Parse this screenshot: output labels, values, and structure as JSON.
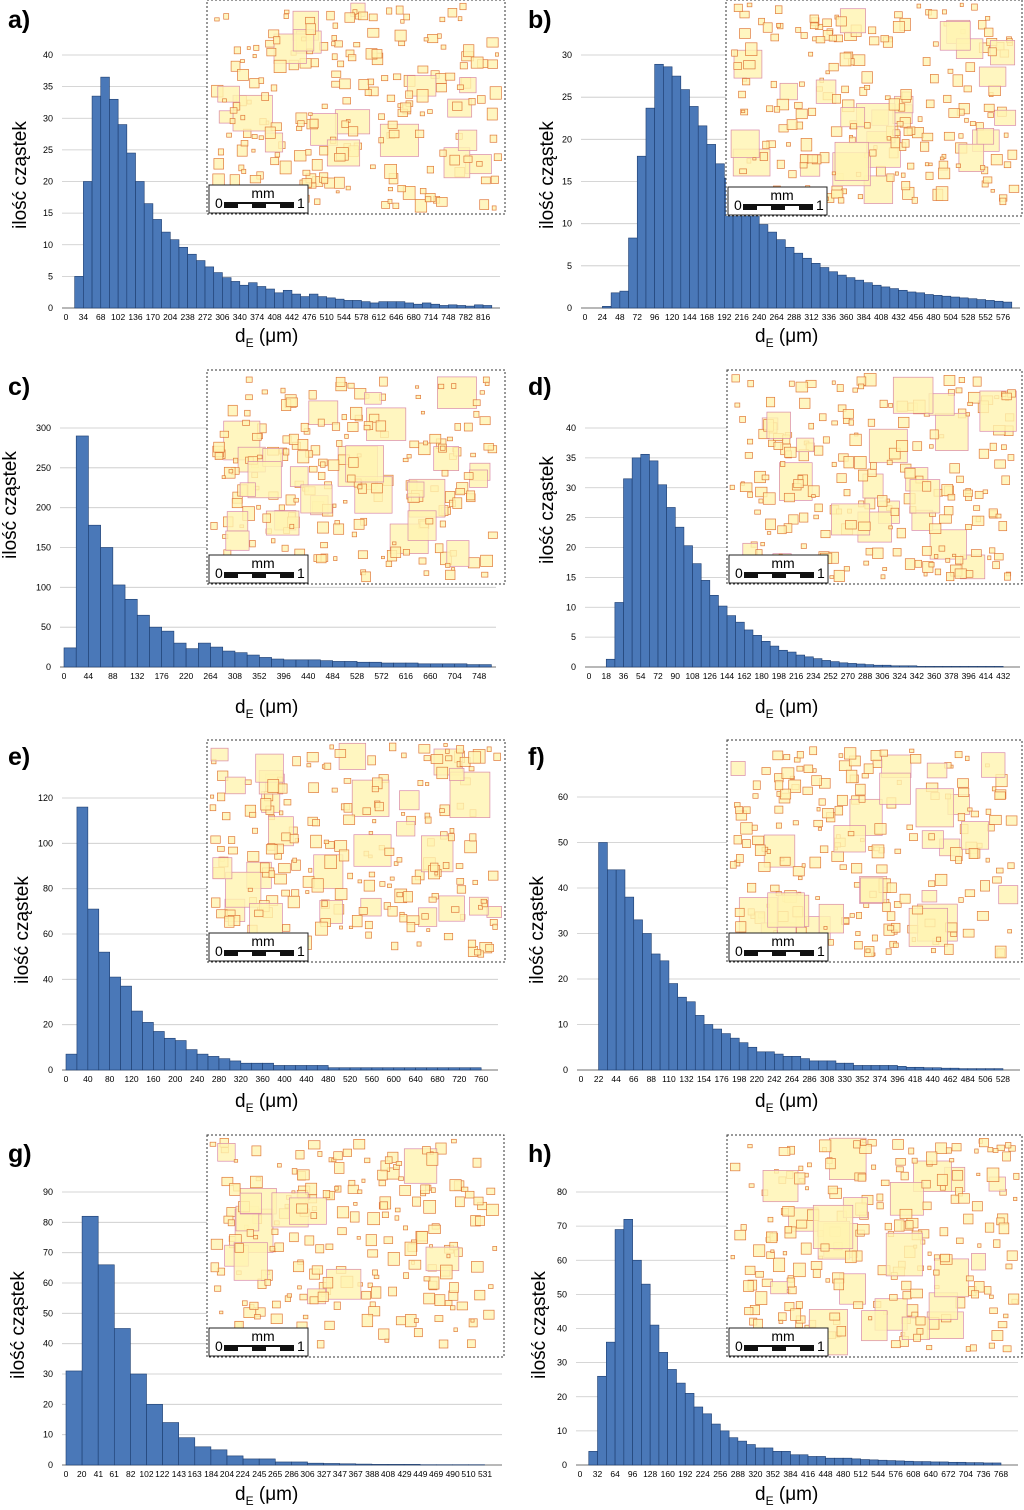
{
  "common": {
    "ylabel": "ilość cząstek",
    "xlabel_main": "d",
    "xlabel_sub": "E",
    "xlabel_unit": " (μm)",
    "scalebar": {
      "zero": "0",
      "one": "1",
      "unit": "mm"
    }
  },
  "colors": {
    "bar": "#4a78b8",
    "bar_edge": "#1c3c6e",
    "particle_edge": "#e07a3c",
    "particle_fill": "#fff4b0",
    "particle_edge_large": "#d98aa8"
  },
  "chart_data": [
    {
      "label": "a)",
      "type": "bar",
      "x_ticks": [
        "0",
        "34",
        "68",
        "102",
        "136",
        "170",
        "204",
        "238",
        "272",
        "306",
        "340",
        "374",
        "408",
        "442",
        "476",
        "510",
        "544",
        "578",
        "612",
        "646",
        "680",
        "714",
        "748",
        "782",
        "816"
      ],
      "y_ticks": [
        "0",
        "5",
        "10",
        "15",
        "20",
        "25",
        "30",
        "35",
        "40"
      ],
      "ylim": [
        0,
        40
      ],
      "bin_width": 17,
      "values": [
        0,
        5,
        20,
        33.5,
        36.5,
        33,
        29,
        24.5,
        20,
        16.5,
        14,
        12,
        10.8,
        9.6,
        8.5,
        7.5,
        6.5,
        5.6,
        4.8,
        4.2,
        3.6,
        4,
        3.4,
        3,
        2.4,
        2.8,
        2.2,
        1.8,
        2.2,
        1.8,
        1.6,
        1.4,
        1.2,
        1.2,
        1,
        0.8,
        1,
        1,
        1,
        0.8,
        0.6,
        0.8,
        0.6,
        0.4,
        0.5,
        0.4,
        0.3,
        0.5,
        0.4,
        0.3,
        0.3
      ]
    },
    {
      "label": "b)",
      "type": "bar",
      "x_ticks": [
        "0",
        "24",
        "48",
        "72",
        "96",
        "120",
        "144",
        "168",
        "192",
        "216",
        "240",
        "264",
        "288",
        "312",
        "336",
        "360",
        "384",
        "408",
        "432",
        "456",
        "480",
        "504",
        "528",
        "552",
        "576"
      ],
      "y_ticks": [
        "0",
        "5",
        "10",
        "15",
        "20",
        "25",
        "30"
      ],
      "ylim": [
        0,
        30
      ],
      "bin_width": 12,
      "values": [
        0,
        0,
        0.2,
        1.8,
        2,
        8.3,
        18,
        23.7,
        28.9,
        28.6,
        27.5,
        25.9,
        23.9,
        21.6,
        19.4,
        17.1,
        15.4,
        13.6,
        12.2,
        11,
        9.9,
        9,
        8.1,
        7.2,
        6.5,
        5.9,
        5.3,
        4.8,
        4.3,
        3.9,
        3.6,
        3.3,
        3,
        2.7,
        2.5,
        2.3,
        2.1,
        1.9,
        1.8,
        1.6,
        1.5,
        1.4,
        1.3,
        1.2,
        1.1,
        1,
        0.9,
        0.8,
        0.7,
        0.7
      ]
    },
    {
      "label": "c)",
      "type": "bar",
      "x_ticks": [
        "0",
        "44",
        "88",
        "132",
        "176",
        "220",
        "264",
        "308",
        "352",
        "396",
        "440",
        "484",
        "528",
        "572",
        "616",
        "660",
        "704",
        "748"
      ],
      "y_ticks": [
        "0",
        "50",
        "100",
        "150",
        "200",
        "250",
        "300"
      ],
      "ylim": [
        0,
        300
      ],
      "bin_width": 22,
      "values": [
        24,
        290,
        178,
        150,
        103,
        85,
        65,
        50,
        45,
        30,
        23,
        30,
        25,
        20,
        18,
        15,
        12,
        10,
        9,
        9,
        9,
        8,
        7,
        7,
        6,
        6,
        5,
        5,
        5,
        4,
        4,
        4,
        4,
        3,
        3,
        3,
        3,
        3,
        3,
        2
      ]
    },
    {
      "label": "d)",
      "type": "bar",
      "x_ticks": [
        "0",
        "18",
        "36",
        "54",
        "72",
        "90",
        "108",
        "126",
        "144",
        "162",
        "180",
        "198",
        "216",
        "234",
        "252",
        "270",
        "288",
        "306",
        "324",
        "342",
        "360",
        "378",
        "396",
        "414",
        "432"
      ],
      "y_ticks": [
        "0",
        "5",
        "10",
        "15",
        "20",
        "25",
        "30",
        "35",
        "40"
      ],
      "ylim": [
        0,
        40
      ],
      "bin_width": 9,
      "values": [
        0,
        0,
        1.3,
        10.8,
        31.5,
        35,
        35.6,
        34.5,
        30.5,
        26.7,
        23.4,
        20.3,
        17.3,
        14.5,
        12,
        10.2,
        8.6,
        7.5,
        6.2,
        5.3,
        4.3,
        3.5,
        2.8,
        2.5,
        2,
        1.7,
        1.4,
        1.1,
        0.9,
        0.7,
        0.6,
        0.5,
        0.4,
        0.3,
        0.3,
        0.2,
        0.2,
        0.2,
        0.1,
        0.1,
        0.1,
        0.1,
        0.1,
        0.1,
        0.1,
        0.1,
        0.1,
        0.1
      ]
    },
    {
      "label": "e)",
      "type": "bar",
      "x_ticks": [
        "0",
        "40",
        "80",
        "120",
        "160",
        "200",
        "240",
        "280",
        "320",
        "360",
        "400",
        "440",
        "480",
        "520",
        "560",
        "600",
        "640",
        "680",
        "720",
        "760"
      ],
      "y_ticks": [
        "0",
        "20",
        "40",
        "60",
        "80",
        "100",
        "120"
      ],
      "ylim": [
        0,
        120
      ],
      "bin_width": 20,
      "values": [
        7,
        116,
        71,
        52,
        41,
        37,
        26,
        21,
        17,
        14,
        13,
        9,
        7,
        6,
        5,
        4,
        3,
        3,
        3,
        2,
        2,
        2,
        2,
        2,
        1,
        1,
        1,
        1,
        1,
        1,
        1,
        1,
        1,
        1,
        1,
        1,
        1,
        1
      ]
    },
    {
      "label": "f)",
      "type": "bar",
      "x_ticks": [
        "0",
        "22",
        "44",
        "66",
        "88",
        "110",
        "132",
        "154",
        "176",
        "198",
        "220",
        "242",
        "264",
        "286",
        "308",
        "330",
        "352",
        "374",
        "396",
        "418",
        "440",
        "462",
        "484",
        "506",
        "528"
      ],
      "y_ticks": [
        "0",
        "10",
        "20",
        "30",
        "40",
        "50",
        "60"
      ],
      "ylim": [
        0,
        60
      ],
      "bin_width": 11,
      "values": [
        0,
        0,
        50,
        44,
        44,
        38,
        33,
        30,
        25.5,
        24,
        19,
        16,
        15,
        12,
        10,
        9,
        8,
        7,
        6,
        5,
        4,
        4,
        3.5,
        3,
        3,
        2.5,
        2,
        2,
        2,
        1.5,
        1.5,
        1,
        1,
        1,
        1,
        1,
        0.8,
        0.6,
        0.6,
        0.5,
        0.5,
        0.4,
        0.4,
        0.3,
        0.3,
        0.3,
        0.3,
        0.3
      ]
    },
    {
      "label": "g)",
      "type": "bar",
      "x_ticks": [
        "0",
        "20",
        "41",
        "61",
        "82",
        "102",
        "122",
        "143",
        "163",
        "184",
        "204",
        "224",
        "245",
        "265",
        "286",
        "306",
        "327",
        "347",
        "367",
        "388",
        "408",
        "429",
        "449",
        "469",
        "490",
        "510",
        "531"
      ],
      "y_ticks": [
        "0",
        "10",
        "20",
        "30",
        "40",
        "50",
        "60",
        "70",
        "80",
        "90"
      ],
      "ylim": [
        0,
        90
      ],
      "bin_width": 20.4,
      "values": [
        31,
        82,
        66,
        45,
        30,
        20,
        14,
        9,
        6,
        5,
        3,
        2,
        2,
        1,
        1,
        0.6,
        0.5,
        0.4,
        0.3,
        0.2,
        0.2,
        0.2,
        0.1,
        0.1,
        0.1,
        0.1
      ]
    },
    {
      "label": "h)",
      "type": "bar",
      "x_ticks": [
        "0",
        "32",
        "64",
        "96",
        "128",
        "160",
        "192",
        "224",
        "256",
        "288",
        "320",
        "352",
        "384",
        "416",
        "448",
        "480",
        "512",
        "544",
        "576",
        "608",
        "640",
        "672",
        "704",
        "736",
        "768"
      ],
      "y_ticks": [
        "0",
        "10",
        "20",
        "30",
        "40",
        "50",
        "60",
        "70",
        "80"
      ],
      "ylim": [
        0,
        80
      ],
      "bin_width": 16,
      "values": [
        0,
        4,
        26,
        36,
        69,
        72,
        60,
        53,
        41,
        33,
        28,
        24,
        21,
        17,
        15,
        12,
        10,
        8,
        7,
        6,
        5,
        5,
        4,
        4,
        3,
        3,
        2.5,
        2.5,
        2,
        2,
        2,
        1.8,
        1.6,
        1.5,
        1.4,
        1.3,
        1.2,
        1.1,
        1,
        1,
        0.9,
        0.9,
        0.8,
        0.8,
        0.7,
        0.7,
        0.6,
        0.6
      ]
    }
  ]
}
